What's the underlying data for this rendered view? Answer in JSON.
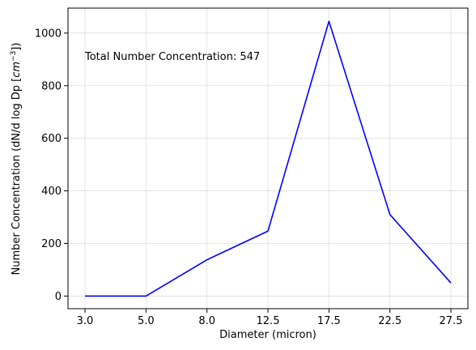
{
  "chart_data": {
    "type": "line",
    "x": [
      "3.0",
      "5.0",
      "8.0",
      "12.5",
      "17.5",
      "22.5",
      "27.5"
    ],
    "series": [
      {
        "values": [
          0,
          0,
          138,
          247,
          1045,
          310,
          50
        ],
        "color": "#0000ff"
      }
    ],
    "xlabel": "Diameter (micron)",
    "ylabel": {
      "prefix": "Number Concentration (dN/d log Dp [",
      "var": "cm",
      "exp": "−3",
      "suffix": "])"
    },
    "yticks": [
      "0",
      "200",
      "400",
      "600",
      "800",
      "1000"
    ],
    "ylim": [
      -48,
      1095
    ],
    "annotation": "Total Number Concentration: 547",
    "grid": true
  }
}
